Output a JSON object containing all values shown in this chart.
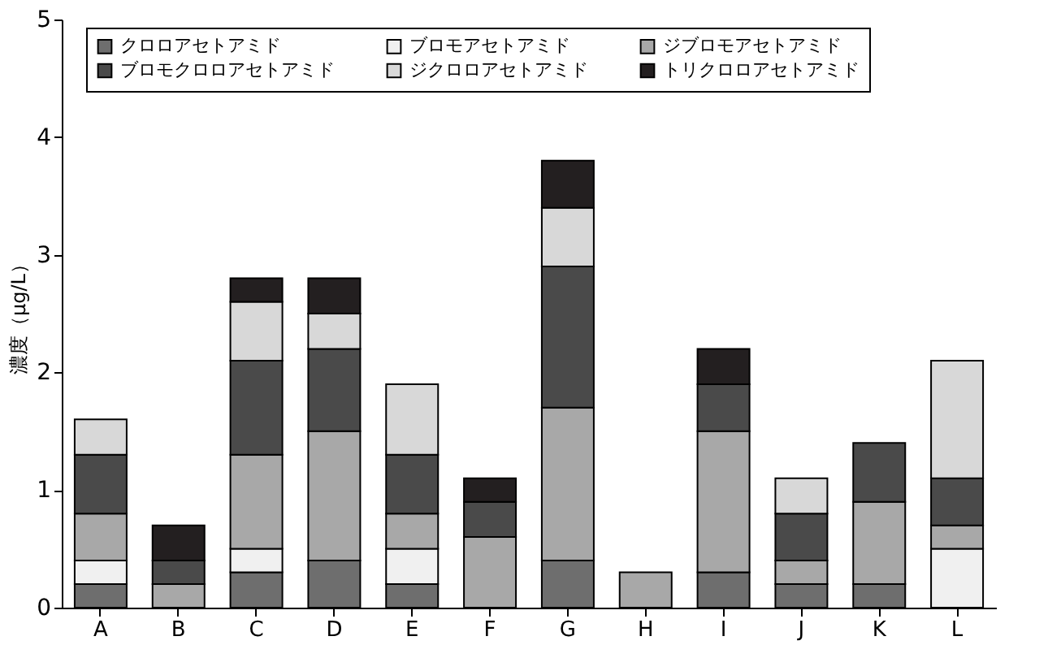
{
  "chart_data": {
    "type": "bar",
    "stacked": true,
    "ylabel": "濃度（μg/L）",
    "categories": [
      "A",
      "B",
      "C",
      "D",
      "E",
      "F",
      "G",
      "H",
      "I",
      "J",
      "K",
      "L"
    ],
    "series": [
      {
        "name": "クロロアセトアミド",
        "color": "#6e6e6e",
        "values": [
          0.2,
          null,
          0.3,
          0.4,
          0.2,
          null,
          0.4,
          null,
          0.3,
          0.2,
          0.2,
          null
        ]
      },
      {
        "name": "ブロモアセトアミド",
        "color": "#f0f0f0",
        "values": [
          0.2,
          null,
          0.2,
          null,
          0.3,
          null,
          null,
          null,
          null,
          null,
          null,
          0.5
        ]
      },
      {
        "name": "ジブロモアセトアミド",
        "color": "#a8a8a8",
        "values": [
          0.4,
          0.2,
          0.8,
          1.1,
          0.3,
          0.6,
          1.3,
          0.3,
          1.2,
          0.2,
          0.7,
          0.2
        ]
      },
      {
        "name": "ブロモクロロアセトアミド",
        "color": "#4a4a4a",
        "values": [
          0.5,
          0.2,
          0.8,
          0.7,
          0.5,
          0.3,
          1.2,
          null,
          0.4,
          0.4,
          0.5,
          0.4
        ]
      },
      {
        "name": "ジクロロアセトアミド",
        "color": "#d8d8d8",
        "values": [
          0.3,
          null,
          0.5,
          0.3,
          0.6,
          null,
          0.5,
          null,
          null,
          0.3,
          null,
          1.0
        ]
      },
      {
        "name": "トリクロロアセトアミド",
        "color": "#231f20",
        "values": [
          null,
          0.3,
          0.2,
          0.3,
          null,
          0.2,
          0.4,
          null,
          0.3,
          null,
          null,
          null
        ]
      }
    ],
    "ylim": [
      0,
      5
    ],
    "yticks": [
      0,
      1,
      2,
      3,
      4,
      5
    ],
    "grid": false,
    "legend": "top"
  }
}
